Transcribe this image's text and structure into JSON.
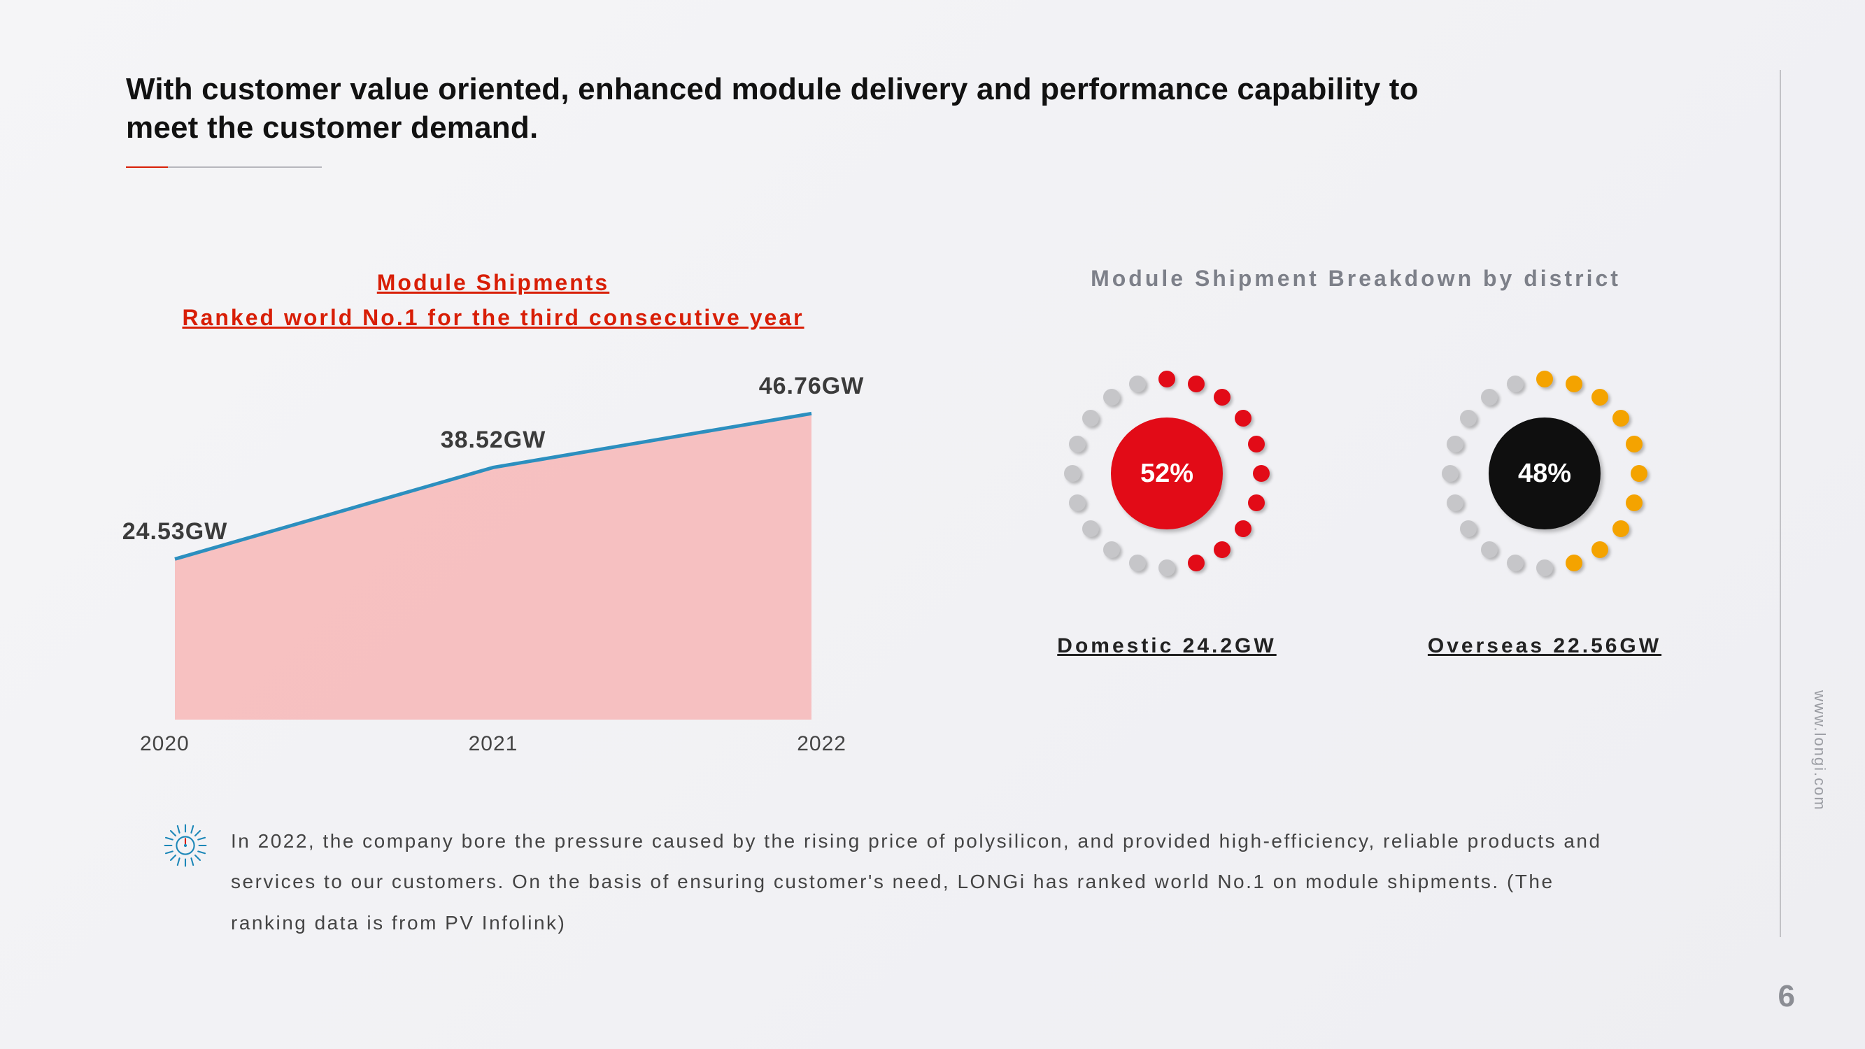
{
  "title": "With customer value oriented, enhanced module delivery and performance capability to meet the customer demand.",
  "area_chart": {
    "type": "area",
    "title_line1": "Module Shipments",
    "title_line2": "Ranked world No.1 for the third consecutive year",
    "title_color": "#d81e06",
    "categories": [
      "2020",
      "2021",
      "2022"
    ],
    "values": [
      24.53,
      38.52,
      46.76
    ],
    "labels": [
      "24.53GW",
      "38.52GW",
      "46.76GW"
    ],
    "ylim": [
      0,
      50
    ],
    "line_color": "#2c8fbf",
    "fill_color": "#f7b7b7",
    "label_fontsize": 34,
    "category_fontsize": 30,
    "line_width": 5
  },
  "breakdown": {
    "title": "Module Shipment Breakdown by district",
    "title_color": "#7d8089",
    "dot_radius": 135,
    "dot_size": 24,
    "dot_off_color": "#c6c6c9",
    "donuts": [
      {
        "percent": 52,
        "percent_label": "52%",
        "center_color": "#e20b17",
        "dot_on_color": "#e20b17",
        "caption": "Domestic  24.2GW",
        "total_dots": 20,
        "on_dots": 10
      },
      {
        "percent": 48,
        "percent_label": "48%",
        "center_color": "#0f0f0f",
        "dot_on_color": "#f4a300",
        "caption": "Overseas  22.56GW",
        "total_dots": 20,
        "on_dots": 10
      }
    ]
  },
  "footer_text": "In 2022, the company bore the pressure caused by the rising price of polysilicon, and provided high-efficiency, reliable products and services to our customers. On the basis of ensuring customer's need, LONGi has ranked world No.1 on module shipments. (The ranking data is from PV Infolink)",
  "icon_color": "#1c87b8",
  "icon_accent": "#d81e06",
  "edge_url": "www.longi.com",
  "page_number": "6",
  "background": "#f2f2f5"
}
